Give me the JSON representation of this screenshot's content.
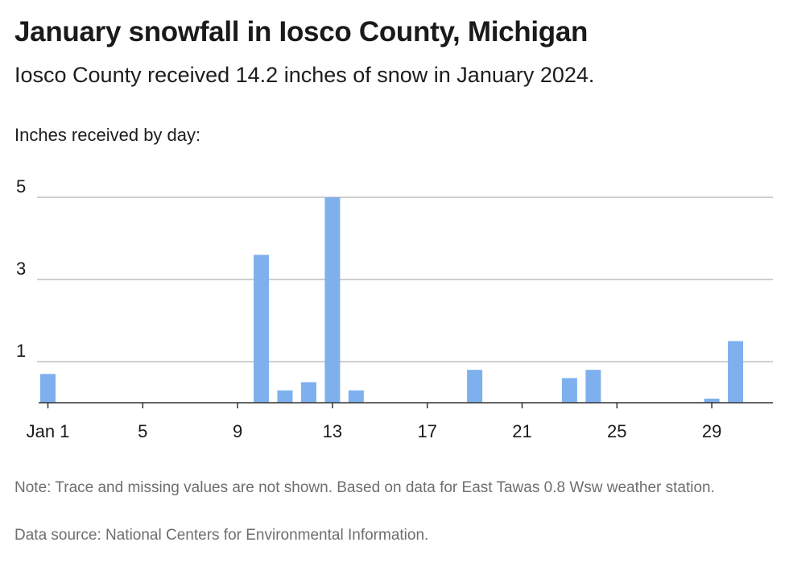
{
  "title": "January snowfall in Iosco County, Michigan",
  "subtitle": "Iosco County received 14.2 inches of snow in January 2024.",
  "axis_caption": "Inches received by day:",
  "note": "Note: Trace and missing values are not shown. Based on data for East Tawas 0.8 Wsw weather station.",
  "source": "Data source: National Centers for Environmental Information.",
  "colors": {
    "bar": "#7eb0ee",
    "grid": "#bdbdbd",
    "baseline": "#333333",
    "text": "#1a1a1a",
    "muted": "#6e6e6e"
  },
  "chart_data": {
    "type": "bar",
    "x": [
      1,
      2,
      3,
      4,
      5,
      6,
      7,
      8,
      9,
      10,
      11,
      12,
      13,
      14,
      15,
      16,
      17,
      18,
      19,
      20,
      21,
      22,
      23,
      24,
      25,
      26,
      27,
      28,
      29,
      30,
      31
    ],
    "values": [
      0.7,
      0,
      0,
      0,
      0,
      0,
      0,
      0,
      0,
      3.6,
      0.3,
      0.5,
      5,
      0.3,
      0,
      0,
      0,
      0,
      0.8,
      0,
      0,
      0,
      0.6,
      0.8,
      0,
      0,
      0,
      0,
      0.1,
      1.5,
      0
    ],
    "xticks": [
      1,
      5,
      9,
      13,
      17,
      21,
      25,
      29
    ],
    "xtick_labels": [
      "Jan 1",
      "5",
      "9",
      "13",
      "17",
      "21",
      "25",
      "29"
    ],
    "yticks": [
      1,
      3,
      5
    ],
    "ylim": [
      0,
      5
    ],
    "grid": true
  }
}
